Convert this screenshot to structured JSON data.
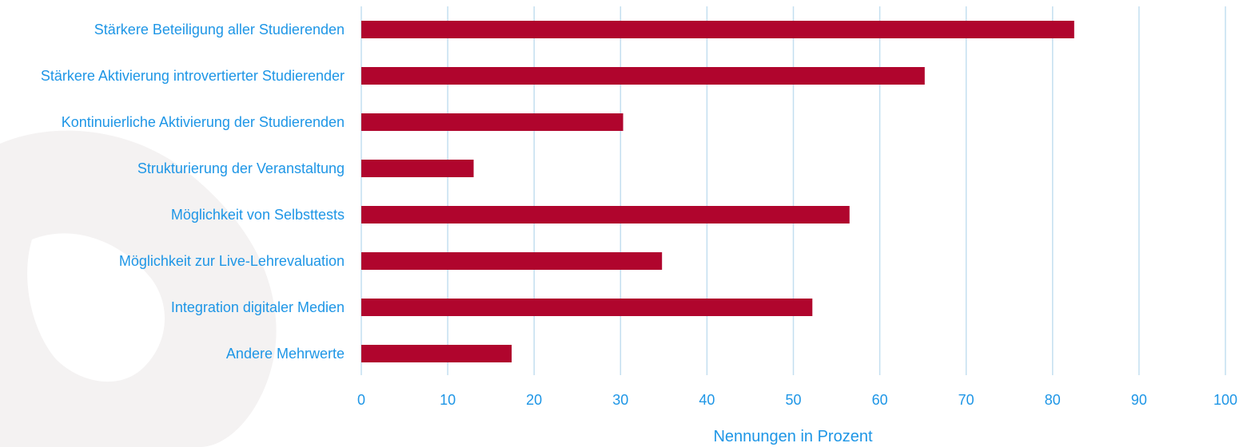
{
  "chart_data": {
    "type": "bar",
    "orientation": "horizontal",
    "categories": [
      "Stärkere Beteiligung aller Studierenden",
      "Stärkere Aktivierung introvertierter Studierender",
      "Kontinuierliche Aktivierung der Studierenden",
      "Strukturierung der Veranstaltung",
      "Möglichkeit von Selbsttests",
      "Möglichkeit zur Live-Lehrevaluation",
      "Integration digitaler Medien",
      "Andere Mehrwerte"
    ],
    "values": [
      82.5,
      65.2,
      30.3,
      13.0,
      56.5,
      34.8,
      52.2,
      17.4
    ],
    "xlabel": "Nennungen in Prozent",
    "ylabel": "",
    "xlim": [
      0,
      100
    ],
    "xticks": [
      "0",
      "10",
      "20",
      "30",
      "40",
      "50",
      "60",
      "70",
      "80",
      "90",
      "100"
    ],
    "grid": "vertical",
    "legend": "none"
  },
  "colors": {
    "bar": "#b0052d",
    "label": "#1e96e6",
    "grid": "#c3dff0",
    "watermark": "#f4f2f2"
  }
}
